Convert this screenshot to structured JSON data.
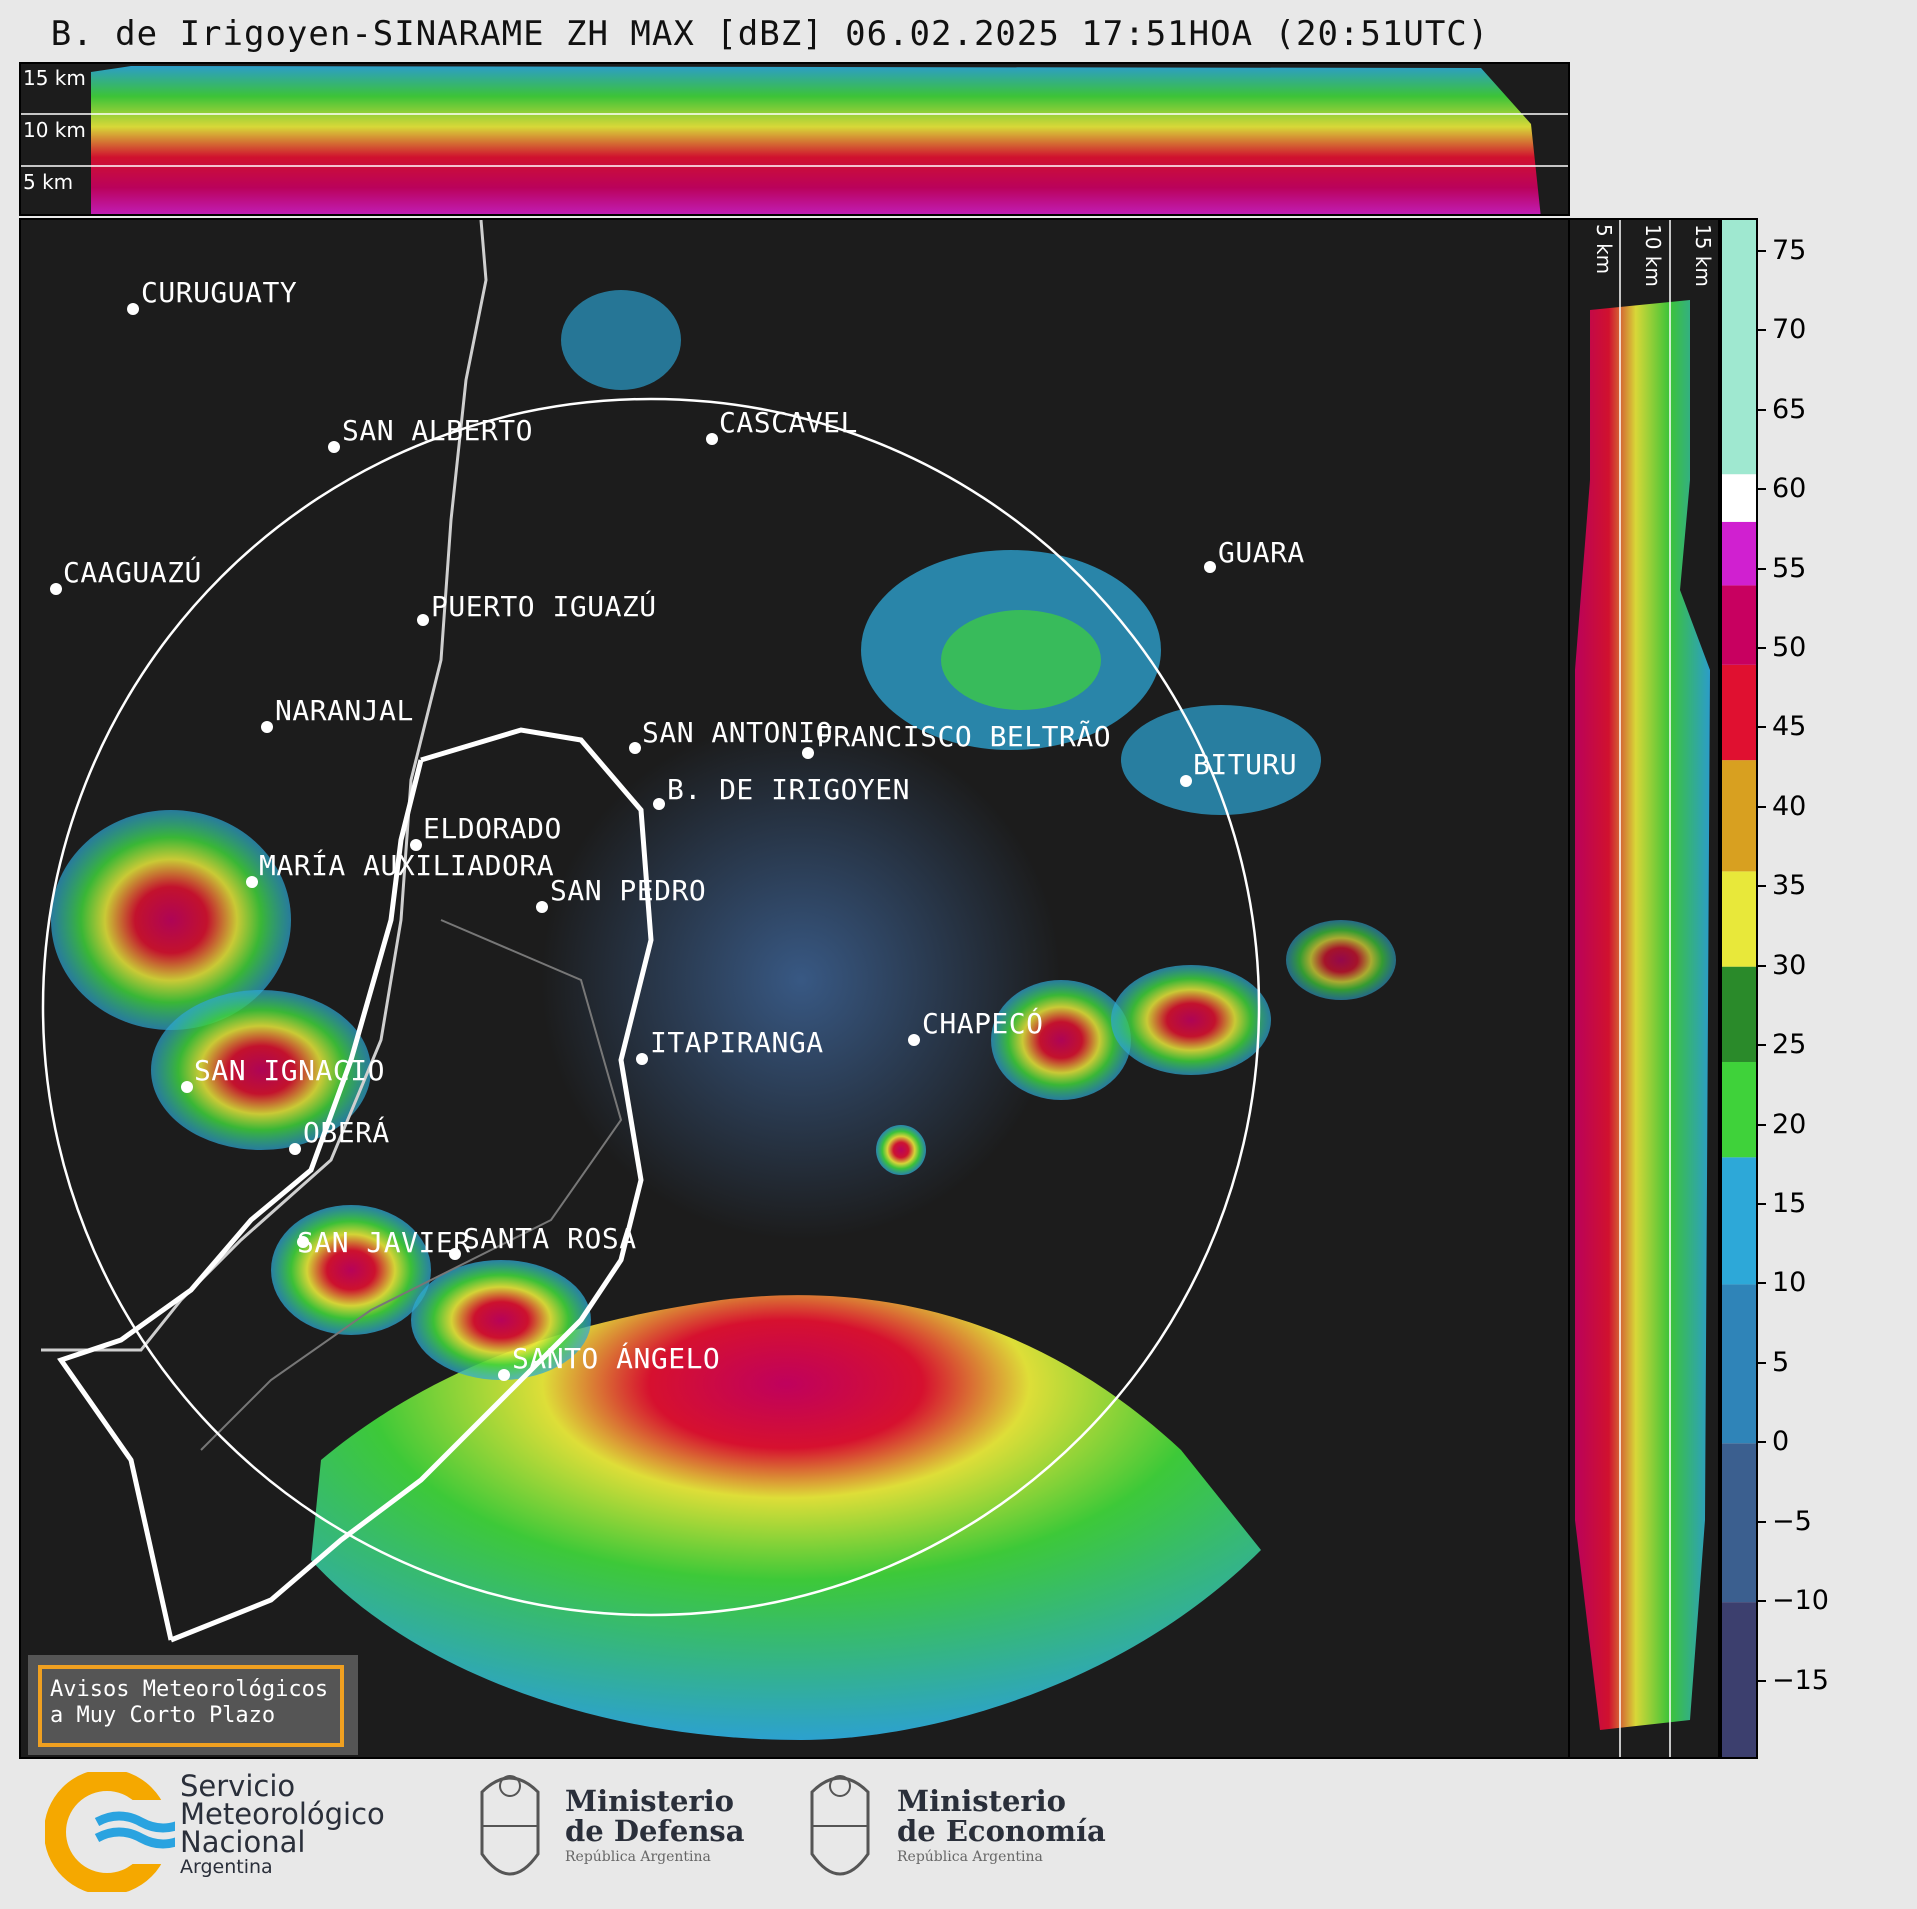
{
  "title": "B. de Irigoyen-SINARAME ZH MAX [dBZ] 06.02.2025 17:51HOA (20:51UTC)",
  "top_panel": {
    "altitude_labels": [
      "15 km",
      "10 km",
      "5 km"
    ]
  },
  "right_panel": {
    "altitude_labels": [
      "5 km",
      "10 km",
      "15 km"
    ]
  },
  "colorbar": {
    "unit": "dBZ",
    "range": [
      -20,
      77
    ],
    "ticks": [
      "75",
      "70",
      "65",
      "60",
      "55",
      "50",
      "45",
      "40",
      "35",
      "30",
      "25",
      "20",
      "15",
      "10",
      "5",
      "0",
      "−5",
      "−10",
      "−15"
    ],
    "tick_values": [
      75,
      70,
      65,
      60,
      55,
      50,
      45,
      40,
      35,
      30,
      25,
      20,
      15,
      10,
      5,
      0,
      -5,
      -10,
      -15
    ],
    "color_stops": [
      {
        "from": -20,
        "to": -10,
        "color": "#3c3f6e"
      },
      {
        "from": -10,
        "to": 0,
        "color": "#3b5f8f"
      },
      {
        "from": 0,
        "to": 10,
        "color": "#2f84b8"
      },
      {
        "from": 10,
        "to": 18,
        "color": "#2da8d8"
      },
      {
        "from": 18,
        "to": 24,
        "color": "#3fd23a"
      },
      {
        "from": 24,
        "to": 30,
        "color": "#2a8a2a"
      },
      {
        "from": 30,
        "to": 36,
        "color": "#e8e83a"
      },
      {
        "from": 36,
        "to": 43,
        "color": "#d8a020"
      },
      {
        "from": 43,
        "to": 49,
        "color": "#e01030"
      },
      {
        "from": 49,
        "to": 54,
        "color": "#c80060"
      },
      {
        "from": 54,
        "to": 58,
        "color": "#d020d0"
      },
      {
        "from": 58,
        "to": 61,
        "color": "#ffffff"
      },
      {
        "from": 61,
        "to": 77,
        "color": "#9fe8d0"
      }
    ]
  },
  "cities": [
    {
      "name": "CURUGUATY"
    },
    {
      "name": "SAN ALBERTO"
    },
    {
      "name": "CASCAVEL"
    },
    {
      "name": "CAAGUAZÚ"
    },
    {
      "name": "GUARA"
    },
    {
      "name": "PUERTO IGUAZÚ"
    },
    {
      "name": "NARANJAL"
    },
    {
      "name": "SAN ANTONIO"
    },
    {
      "name": "FRANCISCO BELTRÃO"
    },
    {
      "name": "BITURU"
    },
    {
      "name": "B. DE IRIGOYEN"
    },
    {
      "name": "ELDORADO"
    },
    {
      "name": "MARÍA AUXILIADORA"
    },
    {
      "name": "SAN PEDRO"
    },
    {
      "name": "CHAPECÓ"
    },
    {
      "name": "ITAPIRANGA"
    },
    {
      "name": "SAN IGNACIO"
    },
    {
      "name": "OBERÁ"
    },
    {
      "name": "SAN JAVIER"
    },
    {
      "name": "SANTA ROSA"
    },
    {
      "name": "SANTO ÁNGELO"
    }
  ],
  "avisos": {
    "line1": "Avisos Meteorológicos",
    "line2": "a Muy Corto Plazo"
  },
  "footer": {
    "smn": {
      "line1": "Servicio",
      "line2": "Meteorológico",
      "line3": "Nacional",
      "line4": "Argentina"
    },
    "defensa": {
      "line1": "Ministerio",
      "line2": "de Defensa",
      "line3": "República Argentina"
    },
    "economia": {
      "line1": "Ministerio",
      "line2": "de Economía",
      "line3": "República Argentina"
    }
  }
}
